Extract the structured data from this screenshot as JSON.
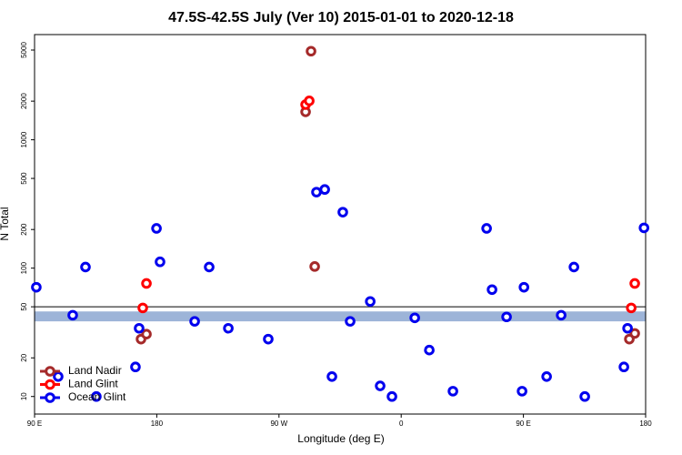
{
  "chart_data": {
    "type": "scatter",
    "title": "47.5S-42.5S July (Ver 10)   2015-01-01 to 2020-12-18",
    "xlabel": "Longitude (deg E)",
    "ylabel": "N Total",
    "xlim": [
      90,
      540
    ],
    "xticks": [
      {
        "value": 90,
        "label": "90 E"
      },
      180,
      {
        "value": 270,
        "label": "90 W"
      },
      {
        "value": 360,
        "label": "0"
      },
      {
        "value": 450,
        "label": "90 E"
      },
      {
        "value": 540,
        "label": "180"
      }
    ],
    "ylim": [
      7.3,
      6600
    ],
    "yticks": [
      10,
      20,
      50,
      100,
      200,
      500,
      1000,
      2000,
      5000
    ],
    "log_y": true,
    "legend": "lower left",
    "hline": 50,
    "band": [
      38.5,
      46
    ],
    "band_color": "#9db4d8",
    "series": [
      {
        "name": "Land Nadir",
        "color": "#a52a2a",
        "x": [
          293.6,
          289.6,
          296.3,
          168.4,
          172.4,
          528,
          532
        ],
        "values": [
          4900,
          1650,
          103,
          28,
          30.6,
          28,
          31
        ]
      },
      {
        "name": "Land Glint",
        "color": "#ff0000",
        "x": [
          289.6,
          292.3,
          172.4,
          169.7,
          532,
          529.4
        ],
        "values": [
          1880,
          2010,
          76,
          49,
          76,
          49
        ]
      },
      {
        "name": "Ocean Glint",
        "color": "#0000ee",
        "x": [
          91.3,
          118.1,
          127.5,
          107.4,
          135.5,
          164.3,
          167,
          179.8,
          182.4,
          207.9,
          218.6,
          232.7,
          262.1,
          297.6,
          303.7,
          309,
          317,
          322.4,
          337.2,
          344.5,
          353.2,
          370,
          380.7,
          398.1,
          422.9,
          426.9,
          437.6,
          449,
          450.4,
          467.1,
          477.8,
          487.2,
          495.2,
          524,
          526.7,
          538.8
        ],
        "values": [
          71,
          43,
          102,
          14.3,
          10,
          17,
          34,
          204,
          112,
          38.5,
          102,
          34,
          28,
          391,
          410,
          14.3,
          273,
          38.5,
          55,
          12.1,
          10,
          41,
          23,
          11,
          204,
          68,
          41.7,
          11,
          71,
          14.3,
          43,
          102,
          10,
          17,
          34,
          206
        ]
      }
    ]
  }
}
